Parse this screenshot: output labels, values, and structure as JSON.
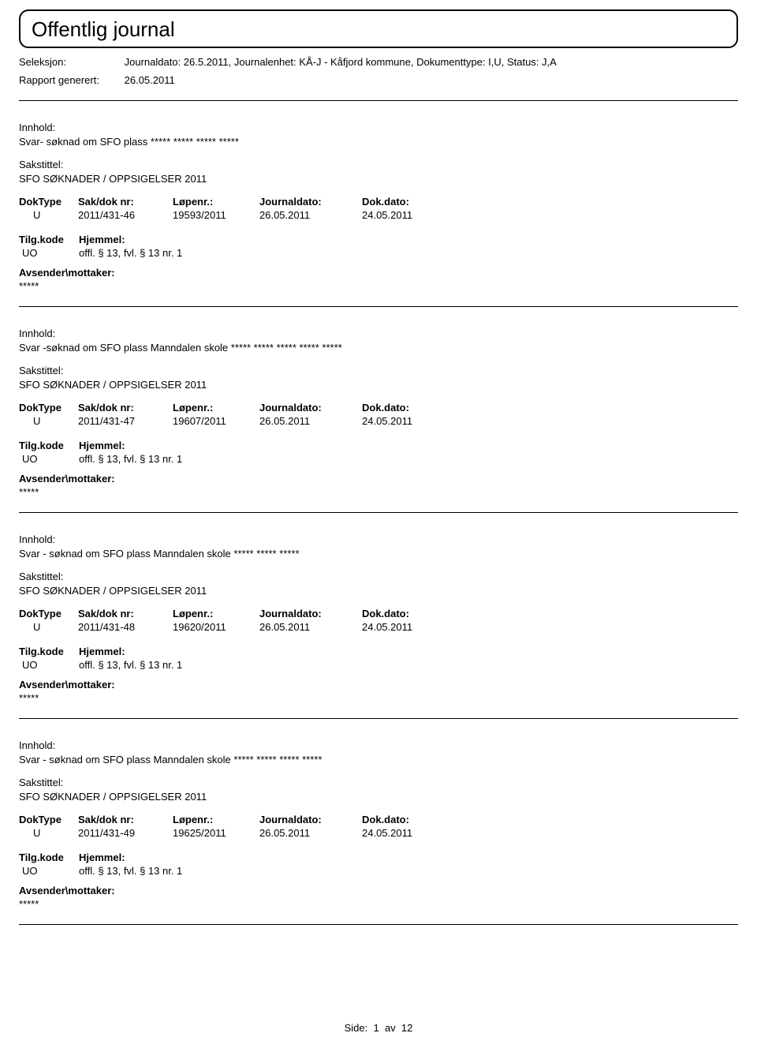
{
  "header": {
    "title": "Offentlig journal"
  },
  "meta": {
    "seleksjon_label": "Seleksjon:",
    "seleksjon_value": "Journaldato: 26.5.2011, Journalenhet: KÅ-J - Kåfjord kommune, Dokumenttype: I,U, Status: J,A",
    "rapport_label": "Rapport generert:",
    "rapport_value": "26.05.2011"
  },
  "labels": {
    "innhold": "Innhold:",
    "sakstittel": "Sakstittel:",
    "doktype": "DokType",
    "saknr": "Sak/dok nr:",
    "lopenr": "Løpenr.:",
    "journaldato": "Journaldato:",
    "dokdato": "Dok.dato:",
    "tilgkode": "Tilg.kode",
    "hjemmel": "Hjemmel:",
    "avsender": "Avsender\\mottaker:"
  },
  "entries": [
    {
      "innhold": "Svar- søknad om SFO plass ***** ***** ***** *****",
      "sakstittel": "SFO SØKNADER / OPPSIGELSER 2011",
      "doktype": "U",
      "saknr": "2011/431-46",
      "lopenr": "19593/2011",
      "jdato": "26.05.2011",
      "dokdato": "24.05.2011",
      "tilgkode": "UO",
      "hjemmel": "offl. § 13, fvl. § 13 nr. 1",
      "avsender": "*****"
    },
    {
      "innhold": "Svar -søknad om SFO plass  Manndalen skole ***** ***** ***** ***** *****",
      "sakstittel": "SFO SØKNADER / OPPSIGELSER 2011",
      "doktype": "U",
      "saknr": "2011/431-47",
      "lopenr": "19607/2011",
      "jdato": "26.05.2011",
      "dokdato": "24.05.2011",
      "tilgkode": "UO",
      "hjemmel": "offl. § 13, fvl. § 13 nr. 1",
      "avsender": "*****"
    },
    {
      "innhold": "Svar - søknad om SFO plass Manndalen skole ***** ***** *****",
      "sakstittel": "SFO SØKNADER / OPPSIGELSER 2011",
      "doktype": "U",
      "saknr": "2011/431-48",
      "lopenr": "19620/2011",
      "jdato": "26.05.2011",
      "dokdato": "24.05.2011",
      "tilgkode": "UO",
      "hjemmel": "offl. § 13, fvl. § 13 nr. 1",
      "avsender": "*****"
    },
    {
      "innhold": "Svar - søknad om SFO plass Manndalen skole ***** ***** ***** *****",
      "sakstittel": "SFO SØKNADER / OPPSIGELSER 2011",
      "doktype": "U",
      "saknr": "2011/431-49",
      "lopenr": "19625/2011",
      "jdato": "26.05.2011",
      "dokdato": "24.05.2011",
      "tilgkode": "UO",
      "hjemmel": "offl. § 13, fvl. § 13 nr. 1",
      "avsender": "*****"
    }
  ],
  "footer": {
    "side_label": "Side:",
    "page": "1",
    "av": "av",
    "total": "12"
  }
}
